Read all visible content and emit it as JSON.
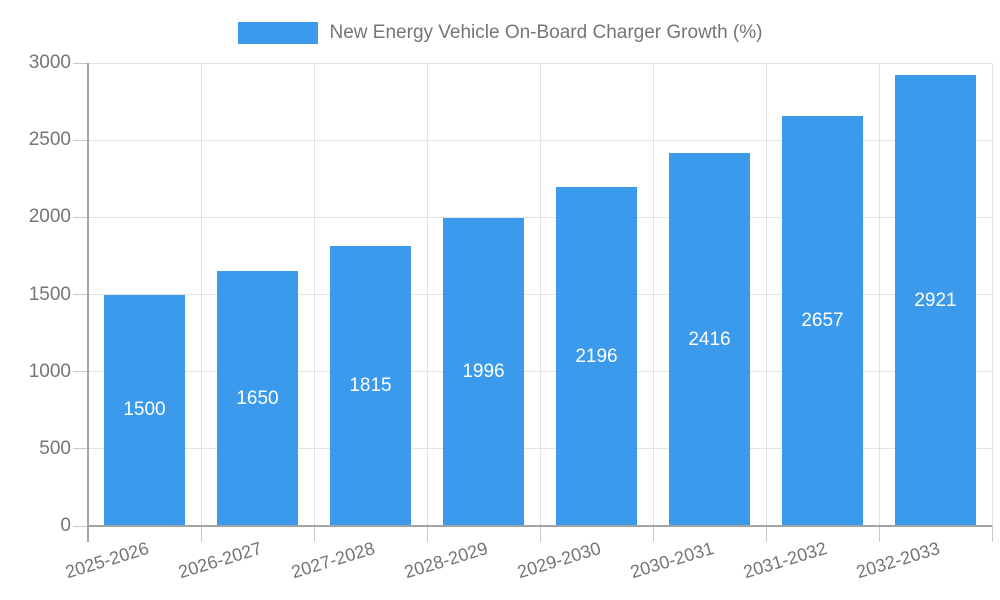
{
  "legend": {
    "label": "New Energy Vehicle On-Board Charger Growth (%)"
  },
  "chart_data": {
    "type": "bar",
    "title": "New Energy Vehicle On-Board Charger Growth (%)",
    "categories": [
      "2025-2026",
      "2026-2027",
      "2027-2028",
      "2028-2029",
      "2029-2030",
      "2030-2031",
      "2031-2032",
      "2032-2033"
    ],
    "values": [
      1500,
      1650,
      1815,
      1996,
      2196,
      2416,
      2657,
      2921
    ],
    "xlabel": "",
    "ylabel": "",
    "ylim": [
      0,
      3000
    ],
    "yticks": [
      0,
      500,
      1000,
      1500,
      2000,
      2500,
      3000
    ],
    "grid": true,
    "legend_position": "top-center",
    "value_labels": "inside-center"
  },
  "colors": {
    "bar": "#3B9AEC",
    "value_label": "#FFFFFF",
    "axis_text": "#757575",
    "gridline": "#E3E3E3",
    "axis_line": "#A3A3A3",
    "tick": "#C9C9C9"
  }
}
